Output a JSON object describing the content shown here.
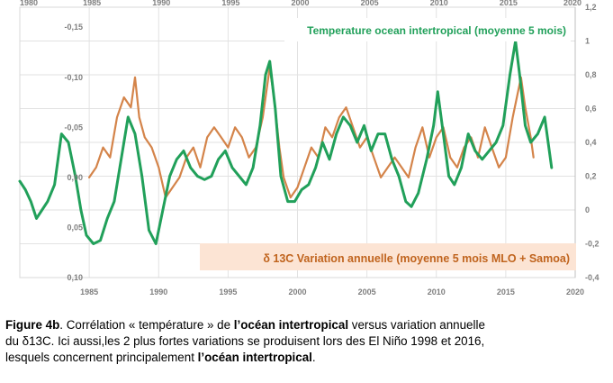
{
  "chart_data": {
    "type": "line",
    "x_axis": {
      "min": 1980,
      "max": 2020,
      "ticks": [
        1985,
        1990,
        1995,
        2000,
        2005,
        2010,
        2015,
        2020
      ],
      "top_ticks": [
        1980,
        1985,
        1990,
        1995,
        2000,
        2005,
        2010,
        2015,
        2020
      ]
    },
    "y_left": {
      "min": -0.17,
      "max": 0.1,
      "reversed": true,
      "ticks": [
        -0.15,
        -0.1,
        -0.05,
        0.0,
        0.05,
        0.1
      ],
      "tick_labels": [
        "-0,15",
        "-0,10",
        "-0,05",
        "0,00",
        "0,05",
        "0,10"
      ]
    },
    "y_right": {
      "min": -0.4,
      "max": 1.2,
      "ticks": [
        -0.4,
        -0.2,
        0,
        0.2,
        0.4,
        0.6,
        0.8,
        1,
        1.2
      ],
      "tick_labels": [
        "-0,4",
        "-0,2",
        "0",
        "0,2",
        "0,4",
        "0,6",
        "0,8",
        "1",
        "1,2"
      ]
    },
    "series": [
      {
        "name": "Temperature ocean intertropical (moyenne 5 mois)",
        "axis": "right",
        "color": "#21a05a",
        "x": [
          1980.0,
          1980.4,
          1980.8,
          1981.2,
          1981.6,
          1982.0,
          1982.5,
          1983.0,
          1983.5,
          1984.0,
          1984.4,
          1984.8,
          1985.3,
          1985.8,
          1986.3,
          1986.8,
          1987.3,
          1987.8,
          1988.3,
          1988.8,
          1989.3,
          1989.8,
          1990.3,
          1990.8,
          1991.3,
          1991.8,
          1992.3,
          1992.8,
          1993.3,
          1993.8,
          1994.3,
          1994.8,
          1995.3,
          1995.8,
          1996.3,
          1996.8,
          1997.3,
          1997.7,
          1998.0,
          1998.4,
          1998.8,
          1999.3,
          1999.8,
          2000.3,
          2000.8,
          2001.3,
          2001.8,
          2002.3,
          2002.8,
          2003.3,
          2003.8,
          2004.3,
          2004.8,
          2005.3,
          2005.8,
          2006.3,
          2006.8,
          2007.3,
          2007.8,
          2008.2,
          2008.7,
          2009.3,
          2009.8,
          2010.1,
          2010.5,
          2010.9,
          2011.3,
          2011.8,
          2012.3,
          2012.8,
          2013.3,
          2013.8,
          2014.3,
          2014.8,
          2015.3,
          2015.7,
          2016.0,
          2016.4,
          2016.8,
          2017.3,
          2017.8,
          2018.3
        ],
        "y": [
          0.17,
          0.12,
          0.05,
          -0.05,
          0.0,
          0.05,
          0.15,
          0.45,
          0.4,
          0.2,
          0.0,
          -0.15,
          -0.2,
          -0.18,
          -0.05,
          0.05,
          0.3,
          0.55,
          0.45,
          0.2,
          -0.12,
          -0.2,
          0.0,
          0.2,
          0.3,
          0.35,
          0.25,
          0.2,
          0.18,
          0.2,
          0.3,
          0.35,
          0.25,
          0.2,
          0.15,
          0.25,
          0.5,
          0.8,
          0.88,
          0.6,
          0.2,
          0.05,
          0.05,
          0.12,
          0.15,
          0.25,
          0.4,
          0.3,
          0.45,
          0.55,
          0.5,
          0.4,
          0.5,
          0.35,
          0.45,
          0.45,
          0.3,
          0.2,
          0.05,
          0.02,
          0.1,
          0.3,
          0.5,
          0.7,
          0.45,
          0.2,
          0.15,
          0.25,
          0.45,
          0.35,
          0.3,
          0.35,
          0.4,
          0.5,
          0.8,
          1.0,
          0.8,
          0.5,
          0.4,
          0.45,
          0.55,
          0.25
        ]
      },
      {
        "name": "δ 13C Variation annuelle (moyenne 5 mois MLO + Samoa)",
        "axis": "left",
        "color": "#d4844a",
        "x": [
          1985.0,
          1985.5,
          1986.0,
          1986.5,
          1987.0,
          1987.5,
          1988.0,
          1988.3,
          1988.6,
          1989.0,
          1989.5,
          1990.0,
          1990.5,
          1991.0,
          1991.5,
          1992.0,
          1992.5,
          1993.0,
          1993.5,
          1994.0,
          1994.5,
          1995.0,
          1995.5,
          1996.0,
          1996.5,
          1997.0,
          1997.5,
          1998.0,
          1998.3,
          1998.7,
          1999.0,
          1999.5,
          2000.0,
          2000.5,
          2001.0,
          2001.5,
          2002.0,
          2002.5,
          2003.0,
          2003.5,
          2004.0,
          2004.5,
          2005.0,
          2005.5,
          2006.0,
          2006.5,
          2007.0,
          2007.5,
          2008.0,
          2008.5,
          2009.0,
          2009.5,
          2010.0,
          2010.5,
          2011.0,
          2011.5,
          2012.0,
          2012.5,
          2013.0,
          2013.5,
          2014.0,
          2014.5,
          2015.0,
          2015.5,
          2015.8,
          2016.1,
          2016.4,
          2016.8,
          2017.0
        ],
        "y": [
          0.0,
          -0.01,
          -0.03,
          -0.02,
          -0.06,
          -0.08,
          -0.07,
          -0.1,
          -0.06,
          -0.04,
          -0.03,
          -0.01,
          0.02,
          0.01,
          0.0,
          -0.02,
          -0.03,
          -0.01,
          -0.04,
          -0.05,
          -0.04,
          -0.03,
          -0.05,
          -0.04,
          -0.02,
          -0.03,
          -0.06,
          -0.11,
          -0.08,
          -0.03,
          0.0,
          0.02,
          0.01,
          -0.01,
          -0.03,
          -0.02,
          -0.05,
          -0.04,
          -0.06,
          -0.07,
          -0.05,
          -0.03,
          -0.04,
          -0.02,
          0.0,
          -0.01,
          -0.02,
          -0.01,
          0.0,
          -0.03,
          -0.05,
          -0.02,
          -0.04,
          -0.05,
          -0.02,
          -0.01,
          -0.03,
          -0.04,
          -0.02,
          -0.05,
          -0.03,
          -0.01,
          -0.02,
          -0.06,
          -0.08,
          -0.1,
          -0.07,
          -0.04,
          -0.02
        ]
      }
    ],
    "grid": true
  },
  "legend_top": "Temperature ocean intertropical (moyenne 5 mois)",
  "legend_bottom": "δ 13C  Variation annuelle  (moyenne 5 mois  MLO + Samoa)",
  "colors": {
    "green": "#21a05a",
    "orange": "#d4844a",
    "legend_bottom_bg": "#fce4d4",
    "legend_bottom_text": "#c0641e",
    "grid": "#e2e2e2",
    "plot_bg": "#ffffff"
  },
  "caption": {
    "l1_a": "Figure 4b",
    "l1_b": ". Corrélation « température » de ",
    "l1_c": "l’océan intertropical",
    "l1_d": " versus variation annuelle",
    "l2": "du δ13C. Ici aussi,les 2 plus fortes variations se produisent lors des El Niño 1998 et 2016,",
    "l3_a": "lesquels concernent principalement ",
    "l3_b": "l’océan intertropical",
    "l3_c": "."
  }
}
